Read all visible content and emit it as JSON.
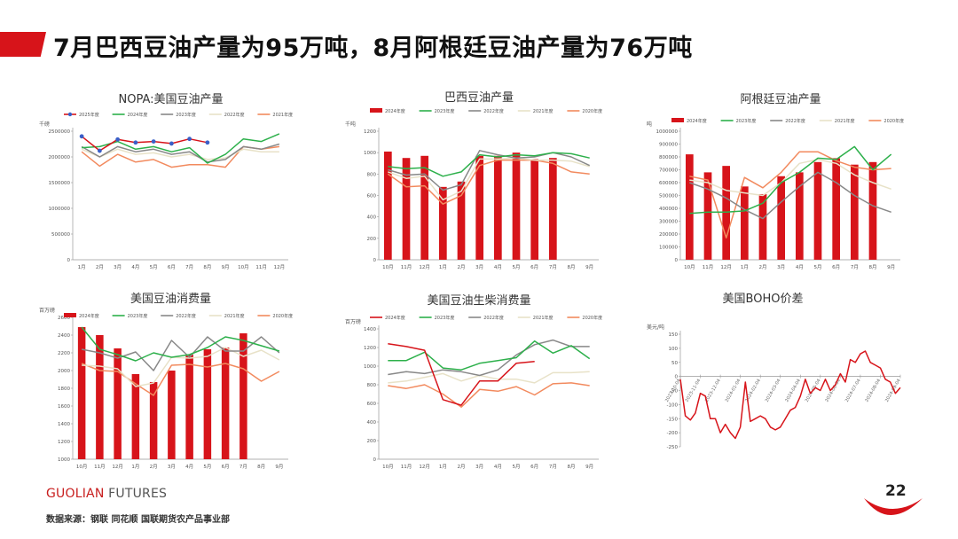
{
  "page": {
    "title": "7月巴西豆油产量为95万吨，8月阿根廷豆油产量为76万吨",
    "brand_main": "GUOLIAN",
    "brand_sub": " FUTURES",
    "source": "数据来源：钢联  同花顺  国联期货农产品事业部",
    "page_number": "22",
    "accent_color": "#d7141a"
  },
  "chart_data": [
    {
      "id": "nopa",
      "type": "line",
      "title": "NOPA:美国豆油产量",
      "unit": "千磅",
      "categories": [
        "1月",
        "2月",
        "3月",
        "4月",
        "5月",
        "6月",
        "7月",
        "8月",
        "9月",
        "10月",
        "11月",
        "12月"
      ],
      "ylim": [
        0,
        2500000
      ],
      "yticks": [
        0,
        500000,
        1000000,
        1500000,
        2000000,
        2500000
      ],
      "series": [
        {
          "name": "2025年度",
          "color": "#d7141a",
          "marker": true,
          "values": [
            2400000,
            2120000,
            2340000,
            2280000,
            2300000,
            2260000,
            2350000,
            2280000,
            null,
            null,
            null,
            null
          ]
        },
        {
          "name": "2024年度",
          "color": "#2db04b",
          "values": [
            2180000,
            2200000,
            2300000,
            2150000,
            2200000,
            2100000,
            2180000,
            1880000,
            2050000,
            2350000,
            2300000,
            2450000
          ]
        },
        {
          "name": "2023年度",
          "color": "#888888",
          "values": [
            2200000,
            2000000,
            2200000,
            2100000,
            2150000,
            2050000,
            2100000,
            1900000,
            1950000,
            2200000,
            2150000,
            2250000
          ]
        },
        {
          "name": "2022年度",
          "color": "#e8e2c8",
          "values": [
            2150000,
            2000000,
            2150000,
            2050000,
            2080000,
            2000000,
            2050000,
            1950000,
            1980000,
            2150000,
            2100000,
            2100000
          ]
        },
        {
          "name": "2021年度",
          "color": "#f28a5e",
          "values": [
            2100000,
            1820000,
            2050000,
            1900000,
            1950000,
            1800000,
            1850000,
            1850000,
            1800000,
            2200000,
            2150000,
            2200000
          ]
        }
      ]
    },
    {
      "id": "brazil",
      "type": "bar+line",
      "title": "巴西豆油产量",
      "unit": "千吨",
      "categories": [
        "10月",
        "11月",
        "12月",
        "1月",
        "2月",
        "3月",
        "4月",
        "5月",
        "6月",
        "7月",
        "8月",
        "9月"
      ],
      "ylim": [
        0,
        1200
      ],
      "yticks": [
        0,
        200,
        400,
        600,
        800,
        1000,
        1200
      ],
      "bars": {
        "name": "2024年度",
        "color": "#d7141a",
        "values": [
          1010,
          950,
          970,
          680,
          730,
          970,
          970,
          1000,
          940,
          950,
          null,
          null
        ]
      },
      "series": [
        {
          "name": "2023年度",
          "color": "#2db04b",
          "values": [
            870,
            850,
            860,
            780,
            820,
            980,
            960,
            980,
            970,
            1000,
            990,
            950
          ]
        },
        {
          "name": "2022年度",
          "color": "#888888",
          "values": [
            840,
            790,
            800,
            650,
            700,
            1020,
            980,
            950,
            960,
            1000,
            960,
            880
          ]
        },
        {
          "name": "2021年度",
          "color": "#e8e2c8",
          "values": [
            820,
            760,
            780,
            560,
            640,
            940,
            940,
            950,
            930,
            930,
            920,
            870
          ]
        },
        {
          "name": "2020年度",
          "color": "#f28a5e",
          "values": [
            800,
            680,
            690,
            520,
            600,
            880,
            930,
            930,
            930,
            900,
            820,
            800
          ]
        }
      ]
    },
    {
      "id": "argentina",
      "type": "bar+line",
      "title": "阿根廷豆油产量",
      "unit": "吨",
      "categories": [
        "10月",
        "11月",
        "12月",
        "1月",
        "2月",
        "3月",
        "4月",
        "5月",
        "6月",
        "7月",
        "8月",
        "9月"
      ],
      "ylim": [
        0,
        1000000
      ],
      "yticks": [
        0,
        100000,
        200000,
        300000,
        400000,
        500000,
        600000,
        700000,
        800000,
        900000,
        1000000
      ],
      "bars": {
        "name": "2024年度",
        "color": "#d7141a",
        "values": [
          820000,
          680000,
          730000,
          570000,
          510000,
          650000,
          680000,
          760000,
          790000,
          740000,
          760000,
          null
        ]
      },
      "series": [
        {
          "name": "2023年度",
          "color": "#2db04b",
          "values": [
            360000,
            370000,
            370000,
            380000,
            440000,
            600000,
            680000,
            790000,
            780000,
            880000,
            700000,
            820000
          ]
        },
        {
          "name": "2022年度",
          "color": "#888888",
          "values": [
            600000,
            550000,
            480000,
            390000,
            320000,
            450000,
            570000,
            680000,
            600000,
            500000,
            420000,
            370000
          ]
        },
        {
          "name": "2021年度",
          "color": "#e8e2c8",
          "values": [
            620000,
            600000,
            540000,
            520000,
            500000,
            600000,
            750000,
            780000,
            750000,
            660000,
            600000,
            550000
          ]
        },
        {
          "name": "2020年度",
          "color": "#f28a5e",
          "values": [
            650000,
            620000,
            170000,
            640000,
            560000,
            680000,
            840000,
            840000,
            770000,
            720000,
            700000,
            710000
          ]
        }
      ]
    },
    {
      "id": "us_consumption",
      "type": "bar+line",
      "title": "美国豆油消费量",
      "unit": "百万磅",
      "categories": [
        "10月",
        "11月",
        "12月",
        "1月",
        "2月",
        "3月",
        "4月",
        "5月",
        "6月",
        "7月",
        "8月",
        "9月"
      ],
      "ylim": [
        1000,
        2600
      ],
      "yticks": [
        1000,
        1200,
        1400,
        1600,
        1800,
        2000,
        2200,
        2400,
        2600
      ],
      "bars": {
        "name": "2024年度",
        "color": "#d7141a",
        "values": [
          2490,
          2400,
          2250,
          1960,
          1870,
          2000,
          2180,
          2240,
          2260,
          2420,
          null,
          null
        ]
      },
      "series": [
        {
          "name": "2023年度",
          "color": "#2db04b",
          "values": [
            2490,
            2240,
            2180,
            2110,
            2200,
            2150,
            2180,
            2260,
            2380,
            2340,
            2280,
            2220
          ]
        },
        {
          "name": "2022年度",
          "color": "#888888",
          "values": [
            2240,
            2200,
            2140,
            2210,
            2000,
            2340,
            2150,
            2380,
            2220,
            2220,
            2380,
            2200
          ]
        },
        {
          "name": "2021年度",
          "color": "#e8e2c8",
          "values": [
            2060,
            2050,
            2020,
            1820,
            1860,
            2150,
            2140,
            2160,
            2260,
            2160,
            2230,
            2120
          ]
        },
        {
          "name": "2020年度",
          "color": "#f28a5e",
          "values": [
            2080,
            2000,
            1990,
            1850,
            1720,
            2060,
            2070,
            2040,
            2080,
            2020,
            1880,
            1990
          ]
        }
      ]
    },
    {
      "id": "us_biodiesel",
      "type": "line",
      "title": "美国豆油生柴消费量",
      "unit": "百万磅",
      "categories": [
        "10月",
        "11月",
        "12月",
        "1月",
        "2月",
        "3月",
        "4月",
        "5月",
        "6月",
        "7月",
        "8月",
        "9月"
      ],
      "ylim": [
        0,
        1400
      ],
      "yticks": [
        0,
        200,
        400,
        600,
        800,
        1000,
        1200,
        1400
      ],
      "series": [
        {
          "name": "2024年度",
          "color": "#d7141a",
          "values": [
            1240,
            1210,
            1170,
            640,
            580,
            840,
            840,
            1030,
            1050,
            null,
            null,
            null
          ]
        },
        {
          "name": "2023年度",
          "color": "#2db04b",
          "values": [
            1060,
            1060,
            1150,
            980,
            960,
            1030,
            1060,
            1090,
            1270,
            1140,
            1220,
            1080
          ]
        },
        {
          "name": "2022年度",
          "color": "#888888",
          "values": [
            910,
            940,
            920,
            960,
            940,
            900,
            960,
            1120,
            1230,
            1280,
            1210,
            1210
          ]
        },
        {
          "name": "2021年度",
          "color": "#e8e2c8",
          "values": [
            820,
            840,
            880,
            920,
            840,
            900,
            860,
            860,
            820,
            930,
            930,
            940
          ]
        },
        {
          "name": "2020年度",
          "color": "#f28a5e",
          "values": [
            790,
            760,
            800,
            700,
            560,
            750,
            730,
            780,
            690,
            810,
            820,
            790
          ]
        }
      ]
    },
    {
      "id": "boho",
      "type": "line",
      "title": "美国BOHO价差",
      "unit": "美元/吨",
      "xlabels": [
        "2023-10-04",
        "2023-11-04",
        "2023-12-04",
        "2024-01-04",
        "2024-02-04",
        "2024-03-04",
        "2024-04-04",
        "2024-05-04",
        "2024-06-04",
        "2024-07-04",
        "2024-08-04",
        "2024-09-04"
      ],
      "ylim": [
        -250,
        150
      ],
      "yticks": [
        -250,
        -200,
        -150,
        -100,
        -50,
        0,
        50,
        100,
        150
      ],
      "series": [
        {
          "name": "BOHO",
          "color": "#d7141a",
          "values": [
            -10,
            -140,
            -155,
            -130,
            -60,
            -70,
            -150,
            -150,
            -200,
            -170,
            -200,
            -220,
            -180,
            -20,
            -160,
            -150,
            -140,
            -150,
            -180,
            -190,
            -180,
            -150,
            -120,
            -110,
            -70,
            -10,
            -60,
            -40,
            -50,
            -10,
            -50,
            -30,
            10,
            -20,
            60,
            50,
            80,
            90,
            50,
            40,
            30,
            -10,
            -20,
            -60,
            -40
          ]
        }
      ]
    }
  ]
}
